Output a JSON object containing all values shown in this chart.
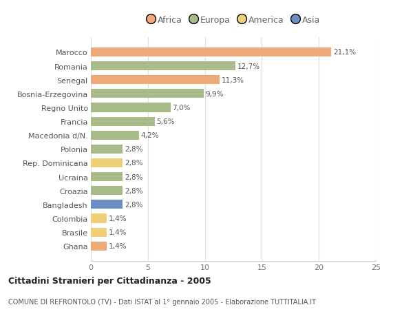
{
  "countries": [
    "Marocco",
    "Romania",
    "Senegal",
    "Bosnia-Erzegovina",
    "Regno Unito",
    "Francia",
    "Macedonia d/N.",
    "Polonia",
    "Rep. Dominicana",
    "Ucraina",
    "Croazia",
    "Bangladesh",
    "Colombia",
    "Brasile",
    "Ghana"
  ],
  "values": [
    21.1,
    12.7,
    11.3,
    9.9,
    7.0,
    5.6,
    4.2,
    2.8,
    2.8,
    2.8,
    2.8,
    2.8,
    1.4,
    1.4,
    1.4
  ],
  "labels": [
    "21,1%",
    "12,7%",
    "11,3%",
    "9,9%",
    "7,0%",
    "5,6%",
    "4,2%",
    "2,8%",
    "2,8%",
    "2,8%",
    "2,8%",
    "2,8%",
    "1,4%",
    "1,4%",
    "1,4%"
  ],
  "colors": [
    "#EDAA78",
    "#A8BC8A",
    "#EDAA78",
    "#A8BC8A",
    "#A8BC8A",
    "#A8BC8A",
    "#A8BC8A",
    "#A8BC8A",
    "#EDD078",
    "#A8BC8A",
    "#A8BC8A",
    "#6B8EC4",
    "#EDD078",
    "#EDD078",
    "#EDAA78"
  ],
  "continent_colors": {
    "Africa": "#EDAA78",
    "Europa": "#A8BC8A",
    "America": "#EDD078",
    "Asia": "#6B8EC4"
  },
  "title": "Cittadini Stranieri per Cittadinanza - 2005",
  "subtitle": "COMUNE DI REFRONTOLO (TV) - Dati ISTAT al 1° gennaio 2005 - Elaborazione TUTTITALIA.IT",
  "xlim": [
    0,
    25
  ],
  "xticks": [
    0,
    5,
    10,
    15,
    20,
    25
  ],
  "bg_color": "#FFFFFF",
  "grid_color": "#DDDDDD",
  "bar_height": 0.65
}
